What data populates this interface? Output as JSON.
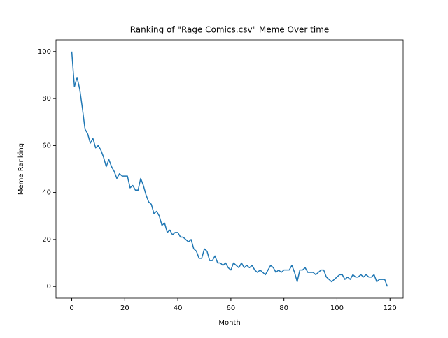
{
  "chart_data": {
    "type": "line",
    "title": "Ranking of \"Rage Comics.csv\" Meme Over time",
    "x_label": "Month",
    "y_label": "Meme Ranking",
    "x": [
      0,
      1,
      2,
      3,
      4,
      5,
      6,
      7,
      8,
      9,
      10,
      11,
      12,
      13,
      14,
      15,
      16,
      17,
      18,
      19,
      20,
      21,
      22,
      23,
      24,
      25,
      26,
      27,
      28,
      29,
      30,
      31,
      32,
      33,
      34,
      35,
      36,
      37,
      38,
      39,
      40,
      41,
      42,
      43,
      44,
      45,
      46,
      47,
      48,
      49,
      50,
      51,
      52,
      53,
      54,
      55,
      56,
      57,
      58,
      59,
      60,
      61,
      62,
      63,
      64,
      65,
      66,
      67,
      68,
      69,
      70,
      71,
      72,
      73,
      74,
      75,
      76,
      77,
      78,
      79,
      80,
      81,
      82,
      83,
      84,
      85,
      86,
      87,
      88,
      89,
      90,
      91,
      92,
      93,
      94,
      95,
      96,
      97,
      98,
      99,
      100,
      101,
      102,
      103,
      104,
      105,
      106,
      107,
      108,
      109,
      110,
      111,
      112,
      113,
      114,
      115,
      116,
      117,
      118,
      119
    ],
    "series": [
      {
        "color": "#1f77b4",
        "values": [
          100,
          85,
          89,
          84,
          76,
          67,
          65,
          61,
          63,
          59,
          60,
          58,
          55,
          51,
          54,
          51,
          49,
          46,
          48,
          47,
          47,
          47,
          42,
          43,
          41,
          41,
          46,
          43,
          39,
          36,
          35,
          31,
          32,
          30,
          26,
          27,
          23,
          24,
          22,
          23,
          23,
          21,
          21,
          20,
          19,
          20,
          16,
          15,
          12,
          12,
          16,
          15,
          11,
          11,
          13,
          10,
          10,
          9,
          10,
          8,
          7,
          10,
          9,
          8,
          10,
          8,
          9,
          8,
          9,
          7,
          6,
          7,
          6,
          5,
          7,
          9,
          8,
          6,
          7,
          6,
          7,
          7,
          7,
          9,
          6,
          2,
          7,
          7,
          8,
          6,
          6,
          6,
          5,
          6,
          7,
          7,
          4,
          3,
          2,
          3,
          4,
          5,
          5,
          3,
          4,
          3,
          5,
          4,
          4,
          5,
          4,
          5,
          4,
          4,
          5,
          2,
          3,
          3,
          3,
          0
        ]
      }
    ],
    "xlim": [
      -5.95,
      124.95
    ],
    "ylim": [
      -5,
      105
    ],
    "xticks": [
      0,
      20,
      40,
      60,
      80,
      100,
      120
    ],
    "yticks": [
      0,
      20,
      40,
      60,
      80,
      100
    ]
  }
}
